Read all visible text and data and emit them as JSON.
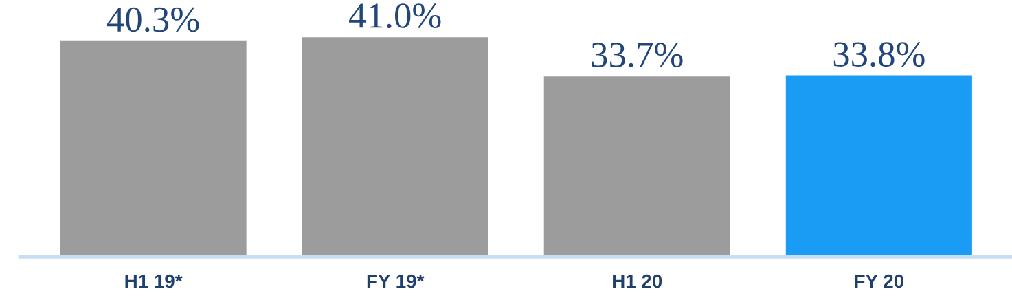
{
  "chart_data": {
    "type": "bar",
    "categories": [
      "H1 19*",
      "FY 19*",
      "H1 20",
      "FY 20"
    ],
    "values": [
      40.3,
      41.0,
      33.7,
      33.8
    ],
    "colors": [
      "#9c9c9c",
      "#9c9c9c",
      "#9c9c9c",
      "#1a9cf5"
    ],
    "value_labels": [
      "40.3%",
      "41.0%",
      "33.7%",
      "33.8%"
    ]
  }
}
